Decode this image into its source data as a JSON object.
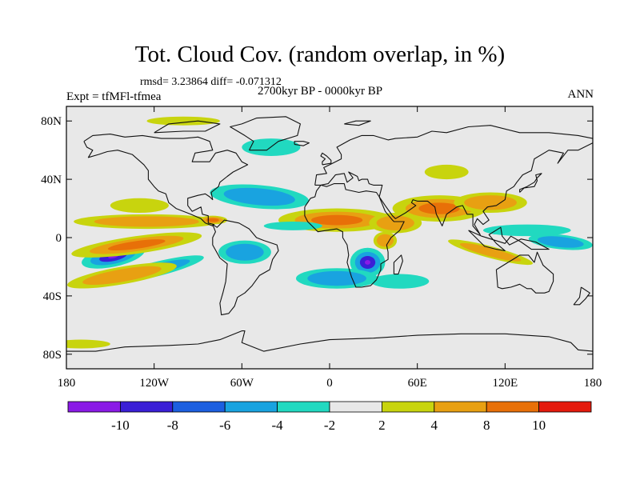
{
  "chart_data": {
    "type": "heatmap",
    "title": "Tot. Cloud Cov. (random overlap, in %)",
    "stats": "rmsd= 3.23864 diff= -0.071312",
    "period": "2700kyr BP - 0000kyr BP",
    "left_label": "Expt = tfMFl-tfmea",
    "right_label": "ANN",
    "x_range": [
      -180,
      180
    ],
    "y_range": [
      -90,
      90
    ],
    "x_ticks": [
      {
        "value": -180,
        "label": "180"
      },
      {
        "value": -120,
        "label": "120W"
      },
      {
        "value": -60,
        "label": "60W"
      },
      {
        "value": 0,
        "label": "0"
      },
      {
        "value": 60,
        "label": "60E"
      },
      {
        "value": 120,
        "label": "120E"
      },
      {
        "value": 180,
        "label": "180"
      }
    ],
    "y_ticks": [
      {
        "value": 80,
        "label": "80N"
      },
      {
        "value": 40,
        "label": "40N"
      },
      {
        "value": 0,
        "label": "0"
      },
      {
        "value": -40,
        "label": "40S"
      },
      {
        "value": -80,
        "label": "80S"
      }
    ],
    "levels": [
      -10,
      -8,
      -6,
      -4,
      -2,
      2,
      4,
      8,
      10
    ],
    "level_labels": [
      "-10",
      "-8",
      "-6",
      "-4",
      "-2",
      "2",
      "4",
      "8",
      "10"
    ],
    "colors": [
      "#8a1ae6",
      "#3a1fd6",
      "#1c5fe0",
      "#19a3e0",
      "#21d9c0",
      "#e8e8e8",
      "#c8d40e",
      "#e8a012",
      "#e87008",
      "#e41a0c"
    ],
    "neutral_color": "#e8e8e8",
    "anomalies": [
      {
        "region": "central-south-pacific",
        "lon": -148,
        "lat": -13,
        "rx": 22,
        "ry": 7,
        "tilt": -12,
        "value": -11
      },
      {
        "region": "south-pacific-tongue",
        "lon": -120,
        "lat": -22,
        "rx": 35,
        "ry": 5,
        "tilt": -14,
        "value": -4
      },
      {
        "region": "subtropical-south-pacific",
        "lon": -132,
        "lat": -5,
        "rx": 45,
        "ry": 6,
        "tilt": -8,
        "value": 8.5
      },
      {
        "region": "south-pacific-band",
        "lon": -142,
        "lat": -26,
        "rx": 38,
        "ry": 6,
        "tilt": -10,
        "value": 5
      },
      {
        "region": "west-pacific-itcz",
        "lon": 158,
        "lat": -3,
        "rx": 22,
        "ry": 5,
        "tilt": 6,
        "value": -6.5
      },
      {
        "region": "tropical-west-pacific",
        "lon": 135,
        "lat": 5,
        "rx": 30,
        "ry": 4,
        "tilt": 0,
        "value": -3
      },
      {
        "region": "equatorial-east-pacific",
        "lon": -125,
        "lat": 11,
        "rx": 50,
        "ry": 5,
        "tilt": 0,
        "value": 5
      },
      {
        "region": "north-atlantic",
        "lon": -48,
        "lat": 28,
        "rx": 34,
        "ry": 8,
        "tilt": 5,
        "value": -5
      },
      {
        "region": "north-pacific",
        "lon": -130,
        "lat": 22,
        "rx": 20,
        "ry": 5,
        "tilt": 0,
        "value": 3
      },
      {
        "region": "arctic-greenland",
        "lon": -40,
        "lat": 62,
        "rx": 20,
        "ry": 6,
        "tilt": 0,
        "value": -3
      },
      {
        "region": "sahara-sahel",
        "lon": 5,
        "lat": 12,
        "rx": 40,
        "ry": 8,
        "tilt": 0,
        "value": 8.5
      },
      {
        "region": "indian-monsoon",
        "lon": 75,
        "lat": 20,
        "rx": 32,
        "ry": 9,
        "tilt": 0,
        "value": 9
      },
      {
        "region": "southeast-asia",
        "lon": 110,
        "lat": 24,
        "rx": 25,
        "ry": 7,
        "tilt": 0,
        "value": 6
      },
      {
        "region": "arabia",
        "lon": 45,
        "lat": 10,
        "rx": 18,
        "ry": 7,
        "tilt": 0,
        "value": 5
      },
      {
        "region": "southern-africa",
        "lon": 26,
        "lat": -17,
        "rx": 12,
        "ry": 10,
        "tilt": 0,
        "value": -11
      },
      {
        "region": "south-atlantic",
        "lon": 5,
        "lat": -28,
        "rx": 28,
        "ry": 7,
        "tilt": 0,
        "value": -4
      },
      {
        "region": "madagascar",
        "lon": 48,
        "lat": -30,
        "rx": 20,
        "ry": 5,
        "tilt": 0,
        "value": -3
      },
      {
        "region": "amazon",
        "lon": -58,
        "lat": -10,
        "rx": 18,
        "ry": 8,
        "tilt": 0,
        "value": -5
      },
      {
        "region": "central-america",
        "lon": -80,
        "lat": 12,
        "rx": 10,
        "ry": 3,
        "tilt": 0,
        "value": 9
      },
      {
        "region": "east-africa",
        "lon": 38,
        "lat": -2,
        "rx": 8,
        "ry": 6,
        "tilt": 0,
        "value": 7
      },
      {
        "region": "tropical-atlantic",
        "lon": -25,
        "lat": 8,
        "rx": 20,
        "ry": 3,
        "tilt": 0,
        "value": -3
      },
      {
        "region": "southern-ocean",
        "lon": 110,
        "lat": -10,
        "rx": 30,
        "ry": 4,
        "tilt": 15,
        "value": 4
      },
      {
        "region": "north-eurasia",
        "lon": 80,
        "lat": 45,
        "rx": 15,
        "ry": 5,
        "tilt": 0,
        "value": 3
      },
      {
        "region": "arctic-canada",
        "lon": -100,
        "lat": 80,
        "rx": 25,
        "ry": 3,
        "tilt": 0,
        "value": 3
      },
      {
        "region": "antarctica-coast",
        "lon": -170,
        "lat": -73,
        "rx": 20,
        "ry": 3,
        "tilt": 0,
        "value": 3
      }
    ]
  }
}
